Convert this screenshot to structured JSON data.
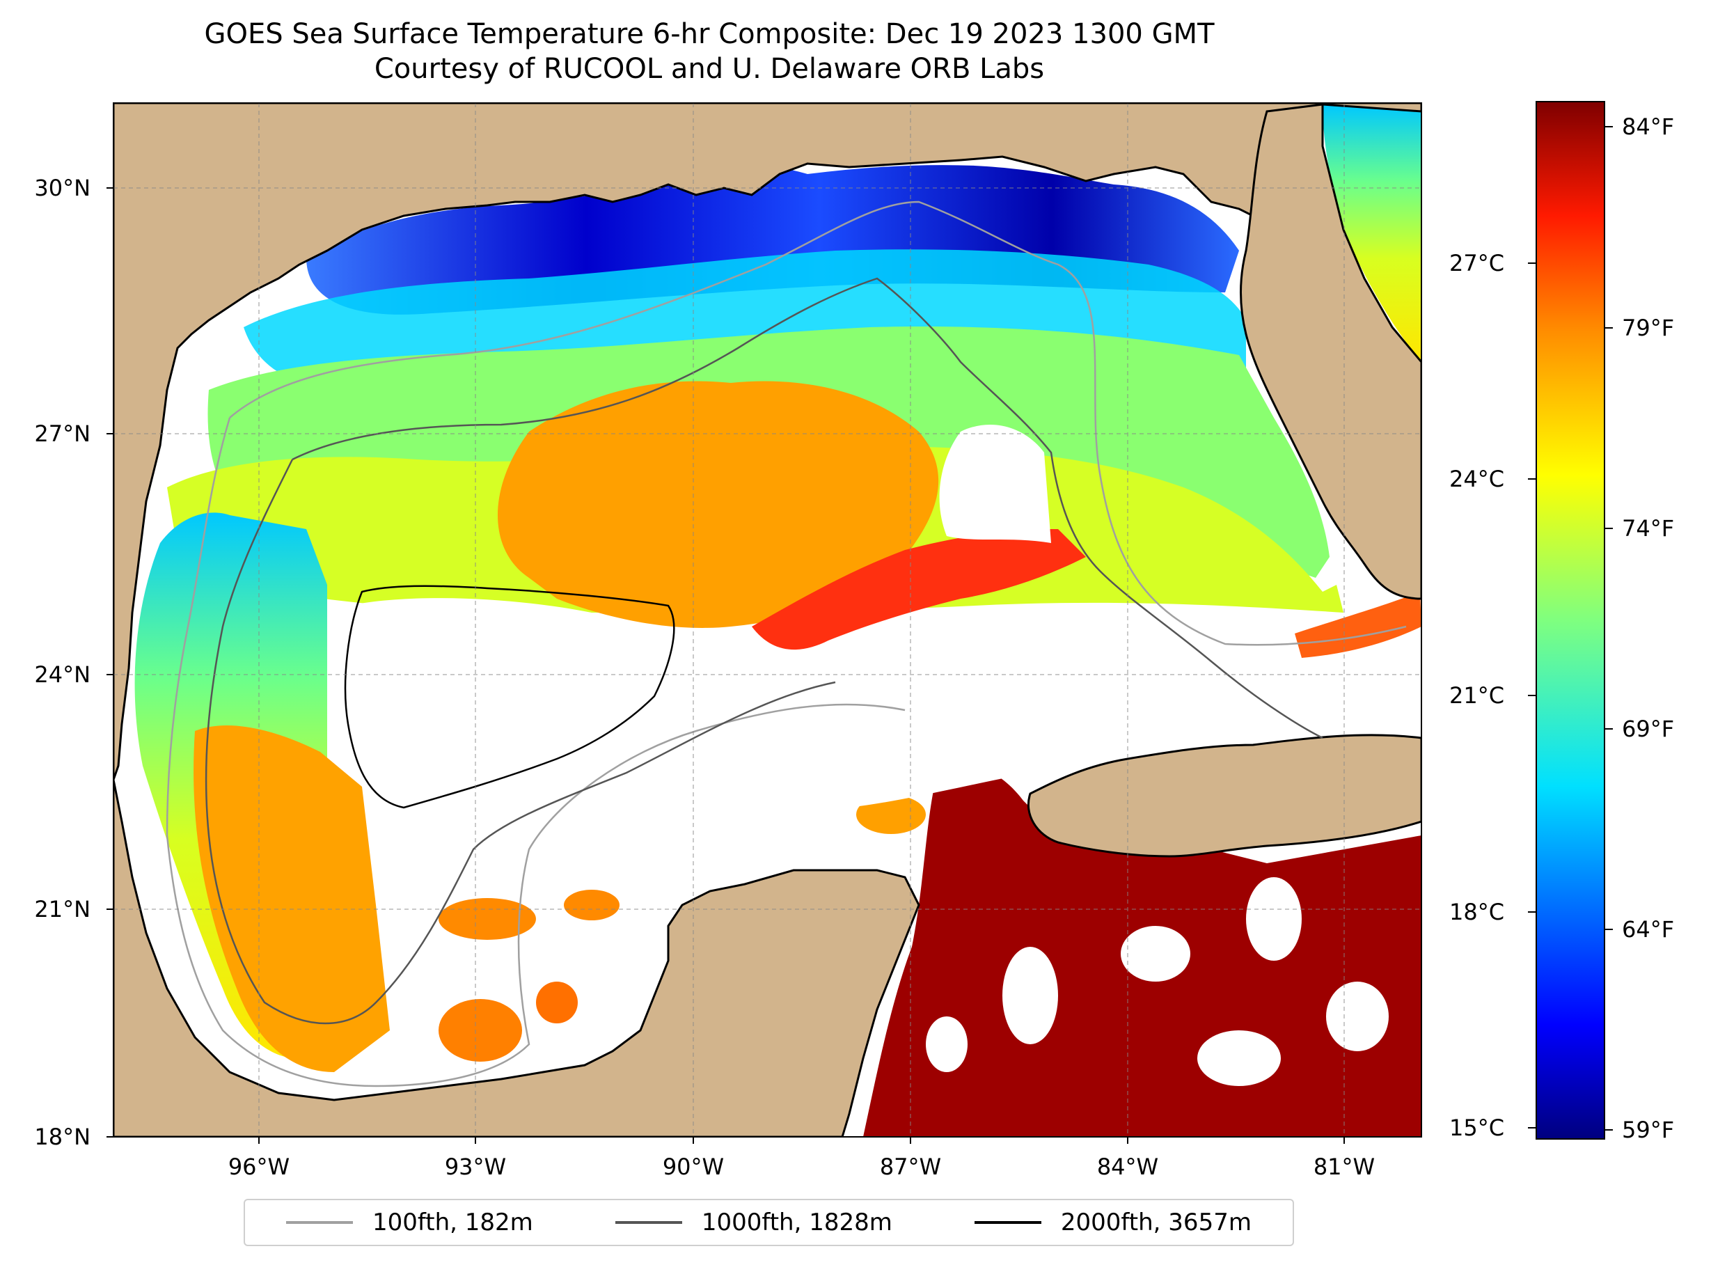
{
  "title": {
    "line1": "GOES Sea Surface Temperature 6-hr Composite: Dec 19 2023 1300 GMT",
    "line2": "Courtesy of RUCOOL and U. Delaware ORB Labs"
  },
  "axes": {
    "lat_ticks": [
      "30°N",
      "27°N",
      "24°N",
      "21°N",
      "18°N"
    ],
    "lon_ticks": [
      "96°W",
      "93°W",
      "90°W",
      "87°W",
      "84°W",
      "81°W"
    ]
  },
  "colorbar": {
    "celsius_ticks": [
      "27°C",
      "24°C",
      "21°C",
      "18°C",
      "15°C"
    ],
    "fahrenheit_ticks": [
      "84°F",
      "79°F",
      "74°F",
      "69°F",
      "64°F",
      "59°F"
    ],
    "range_f": [
      58.5,
      85
    ]
  },
  "legend": {
    "items": [
      {
        "label": "100fth, 182m",
        "color": "#a0a0a0"
      },
      {
        "label": "1000fth, 1828m",
        "color": "#555555"
      },
      {
        "label": "2000fth, 3657m",
        "color": "#000000"
      }
    ]
  },
  "colors": {
    "land": "#d2b48c",
    "no_data": "#ffffff",
    "sst_cold": "#000080",
    "sst_hot": "#800000"
  }
}
